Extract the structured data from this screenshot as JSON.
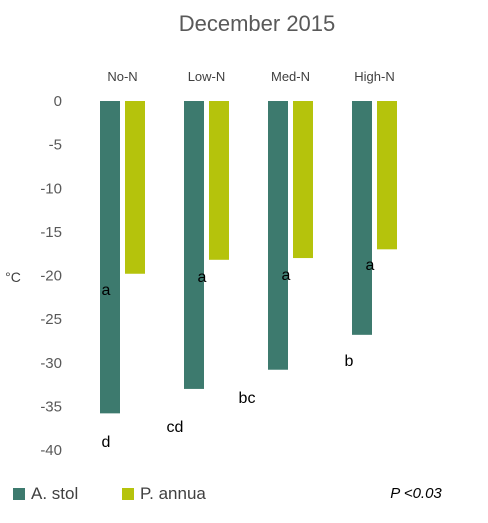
{
  "chart_data": {
    "type": "bar",
    "title": "December 2015",
    "ylabel": "°C",
    "xlabel": "",
    "categories": [
      "No-N",
      "Low-N",
      "Med-N",
      "High-N"
    ],
    "ylim": [
      -40,
      0
    ],
    "yticks": [
      0,
      -5,
      -10,
      -15,
      -20,
      -25,
      -30,
      -35,
      -40
    ],
    "series": [
      {
        "name": "A. stol",
        "color": "#3d7a6e",
        "values": [
          -35.8,
          -33.0,
          -30.8,
          -26.8
        ]
      },
      {
        "name": "P. annua",
        "color": "#b5c30c",
        "values": [
          -19.8,
          -18.2,
          -18.0,
          -17.0
        ]
      }
    ],
    "significance_letters": {
      "A. stol": [
        "d",
        "cd",
        "bc",
        "b"
      ],
      "P. annua": [
        "a",
        "a",
        "a",
        "a"
      ]
    },
    "annotation": "P <0.03",
    "grid": false,
    "legend_position": "bottom-left"
  }
}
